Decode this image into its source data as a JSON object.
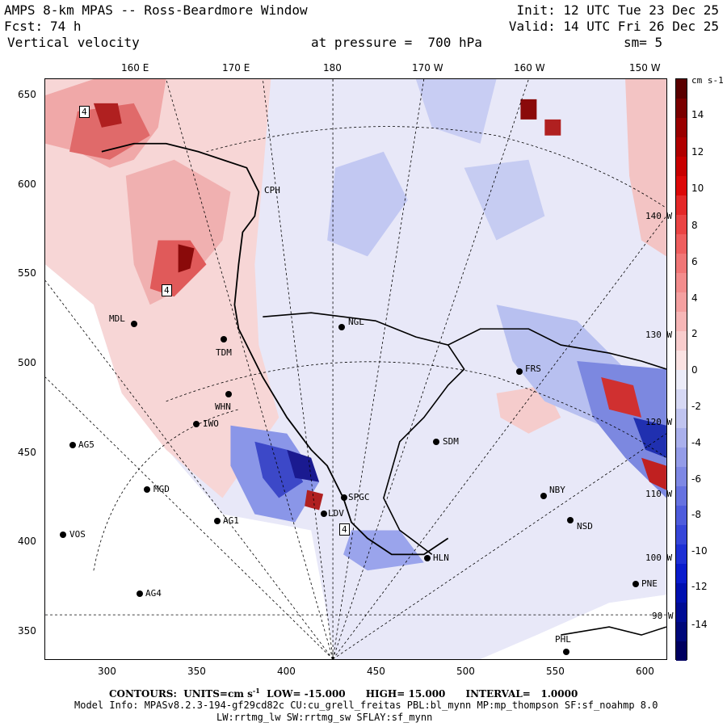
{
  "header": {
    "title": "AMPS 8-km MPAS -- Ross-Beardmore Window",
    "fcst_label": "Fcst:",
    "fcst_value": "74 h",
    "field": "Vertical velocity",
    "init": "Init: 12 UTC Tue 23 Dec 25",
    "valid": "Valid: 14 UTC Fri 26 Dec 25",
    "pressure": "at pressure =  700 hPa",
    "smoothing": "sm= 5"
  },
  "map": {
    "top_lon_labels": [
      "160 E",
      "170 E",
      "180",
      "170 W",
      "160 W",
      "150 W"
    ],
    "left_y_labels": [
      "650",
      "600",
      "550",
      "500",
      "450",
      "400",
      "350"
    ],
    "bottom_x_labels": [
      "300",
      "350",
      "400",
      "450",
      "500",
      "550",
      "600"
    ],
    "interior_lon_labels": [
      "140 W",
      "130 W",
      "120 W",
      "110 W",
      "100 W",
      "90 W"
    ],
    "contour_labels": [
      "4",
      "4",
      "4"
    ],
    "stations": [
      {
        "name": "CPH"
      },
      {
        "name": "MDL"
      },
      {
        "name": "NGL"
      },
      {
        "name": "TDM"
      },
      {
        "name": "FRS"
      },
      {
        "name": "WHN"
      },
      {
        "name": "IWO"
      },
      {
        "name": "AG5"
      },
      {
        "name": "SDM"
      },
      {
        "name": "MGD"
      },
      {
        "name": "SPGC"
      },
      {
        "name": "NBY"
      },
      {
        "name": "AG1"
      },
      {
        "name": "LDV"
      },
      {
        "name": "NSD"
      },
      {
        "name": "VOS"
      },
      {
        "name": "HLN"
      },
      {
        "name": "PNE"
      },
      {
        "name": "AG4"
      },
      {
        "name": "PHL"
      }
    ]
  },
  "colorbar": {
    "units": "cm s-1",
    "tick_labels": [
      "14",
      "12",
      "10",
      "8",
      "6",
      "4",
      "2",
      "0",
      "-2",
      "-4",
      "-6",
      "-8",
      "-10",
      "-12",
      "-14"
    ],
    "colors": {
      "max": "#6b0000",
      "red": "#e01818",
      "lightred": "#f4a6a6",
      "zero": "#f4f4fc",
      "lightblue": "#aab4ee",
      "blue": "#2a2ae0",
      "min": "#000070"
    }
  },
  "footer": {
    "contours": "CONTOURS:  UNITS=cm s",
    "contour_units_sup": "-1",
    "contour_range": "  LOW= -15.000      HIGH= 15.000      INTERVAL=   1.0000",
    "model_info": "Model Info: MPASv8.2.3-194-gf29cd82c CU:cu_grell_freitas PBL:bl_mynn MP:mp_thompson SF:sf_noahmp 8.0",
    "model_info2": "LW:rrtmg_lw SW:rrtmg_sw SFLAY:sf_mynn"
  }
}
